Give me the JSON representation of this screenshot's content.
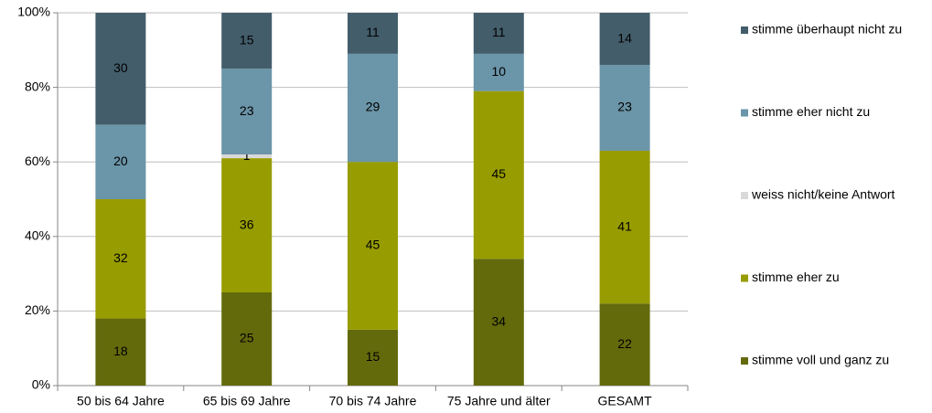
{
  "chart_data": {
    "type": "stacked_bar",
    "categories": [
      "50 bis 64 Jahre",
      "65 bis 69 Jahre",
      "70 bis 74 Jahre",
      "75 Jahre und älter",
      "GESAMT"
    ],
    "series": [
      {
        "name": "stimme voll und ganz zu",
        "color": "#636a0c",
        "values": [
          18,
          25,
          15,
          34,
          22
        ]
      },
      {
        "name": "stimme eher zu",
        "color": "#979c00",
        "values": [
          32,
          36,
          45,
          45,
          41
        ]
      },
      {
        "name": "weiss nicht/keine Antwort",
        "color": "#d9d9d9",
        "values": [
          0,
          1,
          0,
          0,
          0
        ]
      },
      {
        "name": "stimme eher nicht zu",
        "color": "#6b95a8",
        "values": [
          20,
          23,
          29,
          10,
          23
        ]
      },
      {
        "name": "stimme überhaupt nicht zu",
        "color": "#435d6b",
        "values": [
          30,
          15,
          11,
          11,
          14
        ]
      }
    ],
    "ylim": [
      0,
      100
    ],
    "yticks": [
      {
        "value": 0,
        "label": "0%"
      },
      {
        "value": 20,
        "label": "20%"
      },
      {
        "value": 40,
        "label": "40%"
      },
      {
        "value": 60,
        "label": "60%"
      },
      {
        "value": 80,
        "label": "80%"
      },
      {
        "value": 100,
        "label": "100%"
      }
    ],
    "grid": true,
    "legend": "right"
  }
}
